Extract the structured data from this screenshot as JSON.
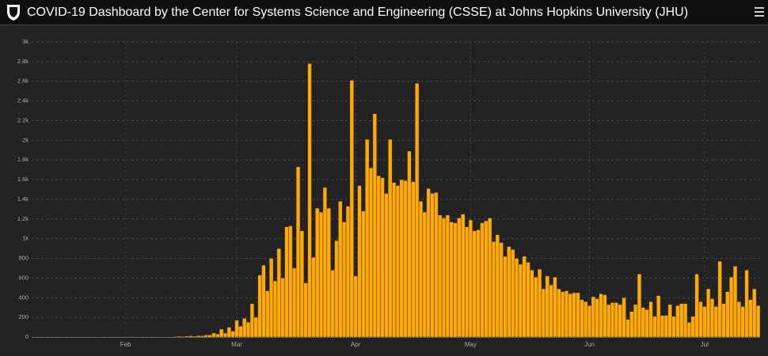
{
  "header": {
    "title": "COVID-19 Dashboard by the Center for Systems Science and Engineering (CSSE) at Johns Hopkins University (JHU)"
  },
  "chart_data": {
    "type": "bar",
    "color": "#ffaa00",
    "grid": true,
    "categories": [
      null,
      null,
      null,
      null,
      null,
      null,
      null,
      null,
      null,
      null,
      null,
      null,
      null,
      null,
      null,
      null,
      null,
      null,
      null,
      null,
      null,
      null,
      null,
      null,
      "Feb",
      null,
      null,
      null,
      null,
      null,
      null,
      null,
      null,
      null,
      null,
      null,
      null,
      null,
      null,
      null,
      null,
      null,
      null,
      null,
      null,
      null,
      null,
      null,
      null,
      null,
      null,
      null,
      null,
      "Mar",
      null,
      null,
      null,
      null,
      null,
      null,
      null,
      null,
      null,
      null,
      null,
      null,
      null,
      null,
      null,
      null,
      null,
      null,
      null,
      null,
      null,
      null,
      null,
      null,
      null,
      null,
      null,
      null,
      null,
      null,
      "Apr",
      null,
      null,
      null,
      null,
      null,
      null,
      null,
      null,
      null,
      null,
      null,
      null,
      null,
      null,
      null,
      null,
      null,
      null,
      null,
      null,
      null,
      null,
      null,
      null,
      null,
      null,
      null,
      null,
      null,
      "May",
      null,
      null,
      null,
      null,
      null,
      null,
      null,
      null,
      null,
      null,
      null,
      null,
      null,
      null,
      null,
      null,
      null,
      null,
      null,
      null,
      null,
      null,
      null,
      null,
      null,
      null,
      null,
      null,
      null,
      null,
      "Jun",
      null,
      null,
      null,
      null,
      null,
      null,
      null,
      null,
      null,
      null,
      null,
      null,
      null,
      null,
      null,
      null,
      null,
      null,
      null,
      null,
      null,
      null,
      null,
      null,
      null,
      null,
      null,
      null,
      null,
      "Jul",
      null,
      null,
      null,
      null,
      null,
      null,
      null,
      null,
      null,
      null,
      null,
      null,
      null,
      null
    ],
    "values": [
      0,
      0,
      0,
      0,
      0,
      0,
      0,
      0,
      0,
      0,
      1,
      0,
      0,
      1,
      0,
      0,
      0,
      2,
      0,
      0,
      0,
      1,
      0,
      0,
      0,
      1,
      0,
      0,
      0,
      0,
      0,
      0,
      1,
      2,
      1,
      3,
      2,
      5,
      8,
      6,
      10,
      12,
      8,
      15,
      12,
      20,
      20,
      40,
      30,
      80,
      40,
      100,
      60,
      170,
      110,
      190,
      150,
      340,
      200,
      630,
      730,
      470,
      800,
      570,
      900,
      600,
      1120,
      1130,
      700,
      1730,
      1080,
      550,
      2780,
      810,
      1310,
      1270,
      1520,
      1310,
      680,
      980,
      1380,
      1170,
      1330,
      2610,
      620,
      1540,
      1280,
      2010,
      1720,
      2270,
      1640,
      1620,
      1460,
      2010,
      1570,
      1540,
      1600,
      1590,
      1890,
      1580,
      2580,
      1380,
      1270,
      1510,
      1460,
      1470,
      1240,
      1210,
      1240,
      1170,
      1160,
      1210,
      1250,
      1120,
      1190,
      1080,
      1090,
      1160,
      1180,
      1210,
      970,
      1040,
      960,
      820,
      920,
      890,
      800,
      740,
      820,
      760,
      680,
      610,
      690,
      490,
      620,
      530,
      610,
      490,
      460,
      470,
      440,
      450,
      450,
      380,
      360,
      320,
      410,
      390,
      440,
      430,
      330,
      350,
      350,
      330,
      400,
      180,
      260,
      330,
      640,
      300,
      280,
      360,
      210,
      420,
      220,
      220,
      330,
      210,
      320,
      340,
      340,
      150,
      210,
      640,
      360,
      310,
      490,
      390,
      310,
      770,
      340,
      460,
      610,
      720,
      360,
      310,
      680,
      380,
      490,
      320
    ],
    "ylim": [
      0,
      3000
    ],
    "yticks": [
      0,
      200,
      400,
      600,
      800,
      {
        "value": 1000,
        "label": "1k"
      },
      {
        "value": 1200,
        "label": "1.2k"
      },
      {
        "value": 1400,
        "label": "1.4k"
      },
      {
        "value": 1600,
        "label": "1.6k"
      },
      {
        "value": 1800,
        "label": "1.8k"
      },
      {
        "value": 2000,
        "label": "2k"
      },
      {
        "value": 2200,
        "label": "2.2k"
      },
      {
        "value": 2400,
        "label": "2.4k"
      },
      {
        "value": 2600,
        "label": "2.6k"
      },
      {
        "value": 2800,
        "label": "2.8k"
      },
      {
        "value": 3000,
        "label": "3k"
      }
    ]
  }
}
